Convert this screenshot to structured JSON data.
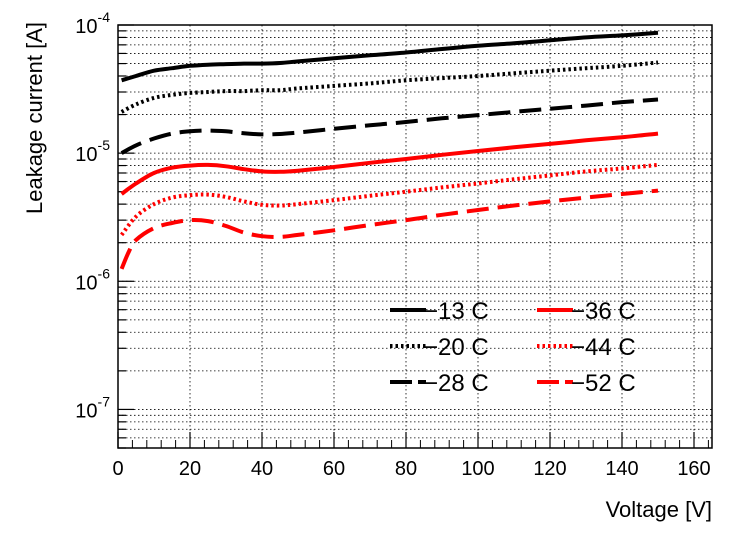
{
  "chart_data": {
    "type": "line",
    "title": "",
    "xlabel": "Voltage [V]",
    "ylabel": "Leakage current [A]",
    "xlim": [
      0,
      165
    ],
    "ylim": [
      5e-08,
      0.0001
    ],
    "yscale": "log",
    "grid": true,
    "x_ticks": [
      "0",
      "20",
      "40",
      "60",
      "80",
      "100",
      "120",
      "140",
      "160"
    ],
    "y_ticks": [
      {
        "base": "10",
        "exp": "-7"
      },
      {
        "base": "10",
        "exp": "-6"
      },
      {
        "base": "10",
        "exp": "-5"
      },
      {
        "base": "10",
        "exp": "-4"
      }
    ],
    "legend_position": "bottom-right",
    "series": [
      {
        "name": "−13 C",
        "color": "#000000",
        "style": "solid",
        "x": [
          1,
          5,
          10,
          15,
          20,
          25,
          30,
          35,
          40,
          45,
          50,
          60,
          70,
          80,
          90,
          100,
          110,
          120,
          130,
          140,
          150
        ],
        "y": [
          3.7e-05,
          4e-05,
          4.4e-05,
          4.6e-05,
          4.8e-05,
          4.9e-05,
          4.95e-05,
          5e-05,
          5e-05,
          5.05e-05,
          5.2e-05,
          5.5e-05,
          5.8e-05,
          6.1e-05,
          6.5e-05,
          6.9e-05,
          7.2e-05,
          7.6e-05,
          8e-05,
          8.3e-05,
          8.7e-05
        ]
      },
      {
        "name": "−20 C",
        "color": "#000000",
        "style": "dotted",
        "x": [
          1,
          5,
          10,
          15,
          20,
          25,
          30,
          35,
          40,
          45,
          50,
          60,
          70,
          80,
          90,
          100,
          110,
          120,
          130,
          140,
          150
        ],
        "y": [
          2.1e-05,
          2.4e-05,
          2.7e-05,
          2.85e-05,
          2.95e-05,
          3e-05,
          3.05e-05,
          3.05e-05,
          3.1e-05,
          3.1e-05,
          3.2e-05,
          3.35e-05,
          3.5e-05,
          3.7e-05,
          3.85e-05,
          4e-05,
          4.2e-05,
          4.4e-05,
          4.6e-05,
          4.8e-05,
          5.1e-05
        ]
      },
      {
        "name": "−28 C",
        "color": "#000000",
        "style": "dashed",
        "x": [
          1,
          5,
          10,
          15,
          20,
          25,
          30,
          35,
          40,
          45,
          50,
          60,
          70,
          80,
          90,
          100,
          110,
          120,
          130,
          140,
          150
        ],
        "y": [
          1e-05,
          1.15e-05,
          1.3e-05,
          1.42e-05,
          1.48e-05,
          1.5e-05,
          1.48e-05,
          1.43e-05,
          1.4e-05,
          1.41e-05,
          1.45e-05,
          1.55e-05,
          1.65e-05,
          1.75e-05,
          1.87e-05,
          1.98e-05,
          2.1e-05,
          2.22e-05,
          2.35e-05,
          2.5e-05,
          2.62e-05
        ]
      },
      {
        "name": "−36 C",
        "color": "#ff0000",
        "style": "solid",
        "x": [
          1,
          5,
          10,
          15,
          20,
          25,
          30,
          35,
          40,
          45,
          50,
          60,
          70,
          80,
          90,
          100,
          110,
          120,
          130,
          140,
          150
        ],
        "y": [
          4.8e-06,
          5.8e-06,
          7e-06,
          7.7e-06,
          8e-06,
          8.1e-06,
          7.9e-06,
          7.5e-06,
          7.2e-06,
          7.15e-06,
          7.3e-06,
          7.8e-06,
          8.4e-06,
          9e-06,
          9.7e-06,
          1.04e-05,
          1.11e-05,
          1.18e-05,
          1.26e-05,
          1.33e-05,
          1.42e-05
        ]
      },
      {
        "name": "−44 C",
        "color": "#ff0000",
        "style": "dotted",
        "x": [
          1,
          5,
          10,
          15,
          20,
          25,
          30,
          35,
          40,
          45,
          50,
          60,
          70,
          80,
          90,
          100,
          110,
          120,
          130,
          140,
          150
        ],
        "y": [
          2.3e-06,
          3.2e-06,
          4e-06,
          4.5e-06,
          4.7e-06,
          4.75e-06,
          4.55e-06,
          4.2e-06,
          3.95e-06,
          3.9e-06,
          4e-06,
          4.3e-06,
          4.65e-06,
          5e-06,
          5.4e-06,
          5.8e-06,
          6.25e-06,
          6.7e-06,
          7.2e-06,
          7.6e-06,
          8.1e-06
        ]
      },
      {
        "name": "−52 C",
        "color": "#ff0000",
        "style": "dashed",
        "x": [
          1,
          3,
          5,
          10,
          15,
          20,
          25,
          30,
          35,
          40,
          45,
          50,
          60,
          70,
          80,
          90,
          100,
          110,
          120,
          130,
          140,
          150
        ],
        "y": [
          1.25e-06,
          1.7e-06,
          2.1e-06,
          2.6e-06,
          2.85e-06,
          3e-06,
          2.95e-06,
          2.7e-06,
          2.4e-06,
          2.25e-06,
          2.22e-06,
          2.3e-06,
          2.5e-06,
          2.75e-06,
          3e-06,
          3.3e-06,
          3.6e-06,
          3.9e-06,
          4.2e-06,
          4.5e-06,
          4.8e-06,
          5.1e-06
        ]
      }
    ]
  }
}
